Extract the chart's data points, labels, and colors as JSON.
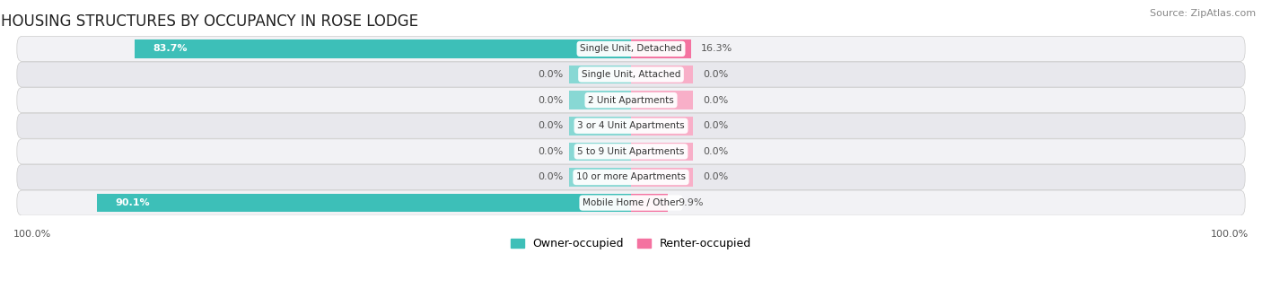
{
  "title": "HOUSING STRUCTURES BY OCCUPANCY IN ROSE LODGE",
  "source": "Source: ZipAtlas.com",
  "categories": [
    "Single Unit, Detached",
    "Single Unit, Attached",
    "2 Unit Apartments",
    "3 or 4 Unit Apartments",
    "5 to 9 Unit Apartments",
    "10 or more Apartments",
    "Mobile Home / Other"
  ],
  "owner_values": [
    83.7,
    0.0,
    0.0,
    0.0,
    0.0,
    0.0,
    90.1
  ],
  "renter_values": [
    16.3,
    0.0,
    0.0,
    0.0,
    0.0,
    0.0,
    9.9
  ],
  "owner_color": "#3dbfb8",
  "renter_color": "#f472a0",
  "renter_color_faint": "#f8afc8",
  "owner_color_faint": "#88d8d4",
  "owner_label": "Owner-occupied",
  "renter_label": "Renter-occupied",
  "row_bg_light": "#f2f2f5",
  "row_bg_dark": "#e8e8ed",
  "axis_label_left": "100.0%",
  "axis_label_right": "100.0%",
  "title_fontsize": 12,
  "source_fontsize": 8,
  "bar_height": 0.72,
  "max_owner": 100.0,
  "max_renter": 100.0,
  "stub_owner": 5.0,
  "stub_renter": 5.0
}
